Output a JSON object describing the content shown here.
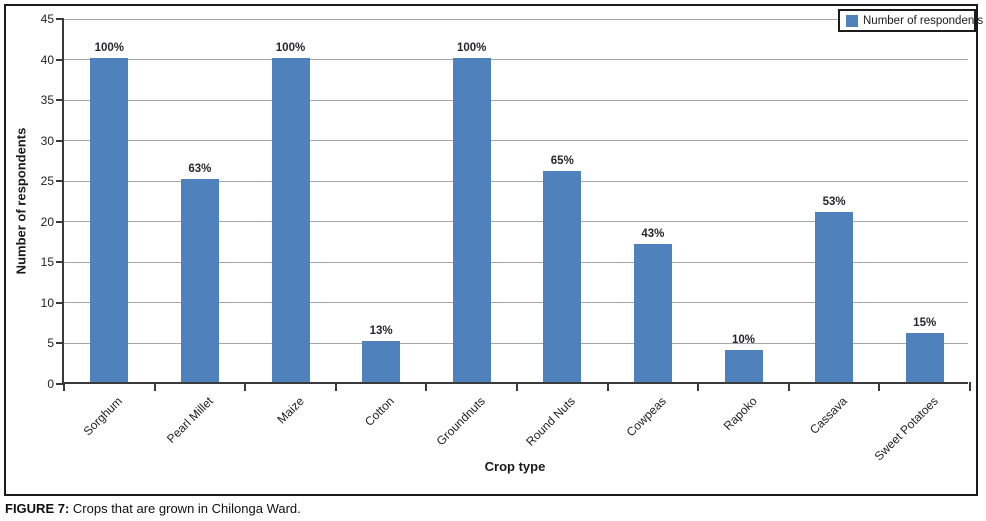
{
  "figure": {
    "caption_label": "FIGURE 7:",
    "caption_text": " Crops that are grown in Chilonga Ward."
  },
  "chart_data": {
    "type": "bar",
    "title": "",
    "categories": [
      "Sorghum",
      "Pearl Millet",
      "Maize",
      "Cotton",
      "Groundnuts",
      "Round Nuts",
      "Cowpeas",
      "Rapoko",
      "Cassava",
      "Sweet Potatoes"
    ],
    "series": [
      {
        "name": "Number of respondents",
        "values": [
          40,
          25,
          40,
          5,
          40,
          26,
          17,
          4,
          21,
          6
        ]
      }
    ],
    "bar_labels": [
      "100%",
      "63%",
      "100%",
      "13%",
      "100%",
      "65%",
      "43%",
      "10%",
      "53%",
      "15%"
    ],
    "xlabel": "Crop type",
    "ylabel": "Number of respondents",
    "ylim": [
      0,
      45
    ],
    "ytick_step": 5,
    "grid": true,
    "legend": {
      "position": "top-right",
      "entries": [
        "Number of respondents"
      ]
    },
    "bar_color": "#4F81BD",
    "gridline_color": "#A6A6A6",
    "axis_color": "#3a3a3a"
  }
}
